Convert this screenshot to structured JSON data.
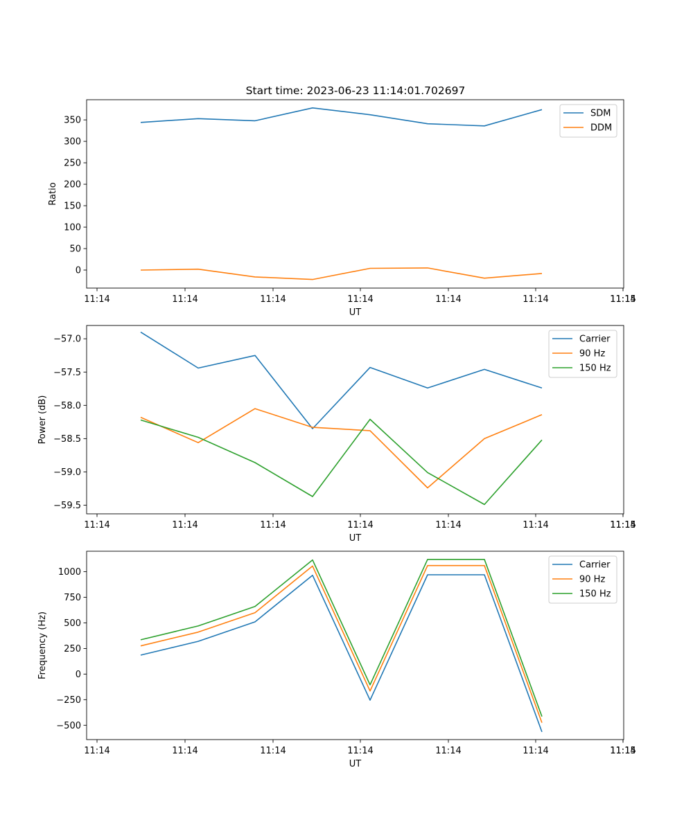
{
  "figure": {
    "title": "Start time: 2023-06-23 11:14:01.702697"
  },
  "chart_data": [
    {
      "type": "line",
      "xlabel": "UT",
      "ylabel": "Ratio",
      "x_tick_labels": [
        "11:14",
        "11:14",
        "11:14",
        "11:14",
        "11:14",
        "11:14",
        "11:14"
      ],
      "x_last_tick_label": "11:15",
      "y_ticks": [
        0,
        50,
        100,
        150,
        200,
        250,
        300,
        350
      ],
      "ylim": [
        -42,
        397
      ],
      "grid": false,
      "legend": "top-right",
      "series": [
        {
          "name": "SDM",
          "color": "#1f77b4",
          "values": [
            344,
            353,
            348,
            378,
            362,
            341,
            336,
            374
          ]
        },
        {
          "name": "DDM",
          "color": "#ff7f0e",
          "values": [
            0,
            2,
            -16,
            -22,
            4,
            5,
            -19,
            -8
          ]
        }
      ]
    },
    {
      "type": "line",
      "xlabel": "UT",
      "ylabel": "Power (dB)",
      "x_tick_labels": [
        "11:14",
        "11:14",
        "11:14",
        "11:14",
        "11:14",
        "11:14",
        "11:14"
      ],
      "x_last_tick_label": "11:15",
      "y_ticks": [
        -59.5,
        -59.0,
        -58.5,
        -58.0,
        -57.5,
        -57.0
      ],
      "y_tick_labels": [
        "−59.5",
        "−59.0",
        "−58.5",
        "−58.0",
        "−57.5",
        "−57.0"
      ],
      "ylim": [
        -59.63,
        -56.8
      ],
      "grid": false,
      "legend": "top-right",
      "series": [
        {
          "name": "Carrier",
          "color": "#1f77b4",
          "values": [
            -56.9,
            -57.44,
            -57.25,
            -58.35,
            -57.43,
            -57.74,
            -57.46,
            -57.74
          ]
        },
        {
          "name": "90 Hz",
          "color": "#ff7f0e",
          "values": [
            -58.18,
            -58.56,
            -58.05,
            -58.33,
            -58.38,
            -59.24,
            -58.5,
            -58.14
          ]
        },
        {
          "name": "150 Hz",
          "color": "#2ca02c",
          "values": [
            -58.22,
            -58.48,
            -58.86,
            -59.37,
            -58.21,
            -59.01,
            -59.49,
            -58.52
          ]
        }
      ]
    },
    {
      "type": "line",
      "xlabel": "UT",
      "ylabel": "Frequency (Hz)",
      "x_tick_labels": [
        "11:14",
        "11:14",
        "11:14",
        "11:14",
        "11:14",
        "11:14",
        "11:14"
      ],
      "x_last_tick_label": "11:15",
      "y_ticks": [
        -500,
        -250,
        0,
        250,
        500,
        750,
        1000
      ],
      "y_tick_labels": [
        "−500",
        "−250",
        "0",
        "250",
        "500",
        "750",
        "1000"
      ],
      "ylim": [
        -640,
        1200
      ],
      "grid": false,
      "legend": "top-right",
      "series": [
        {
          "name": "Carrier",
          "color": "#1f77b4",
          "values": [
            185,
            320,
            510,
            965,
            -255,
            970,
            970,
            -565
          ]
        },
        {
          "name": "90 Hz",
          "color": "#ff7f0e",
          "values": [
            275,
            410,
            600,
            1055,
            -165,
            1060,
            1060,
            -475
          ]
        },
        {
          "name": "150 Hz",
          "color": "#2ca02c",
          "values": [
            335,
            470,
            660,
            1115,
            -105,
            1120,
            1120,
            -415
          ]
        }
      ]
    }
  ]
}
